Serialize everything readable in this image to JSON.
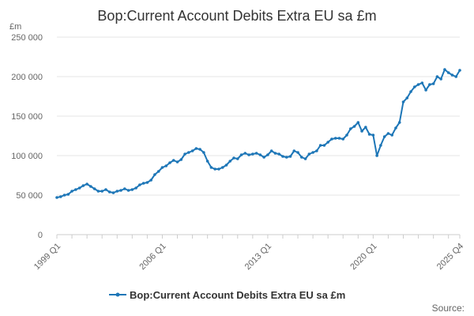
{
  "colors": {
    "series": "#1d76b7",
    "grid": "#e6e6e6",
    "axis": "#cccccc"
  },
  "unit_label": "£m",
  "source_label": "Source:",
  "chart_data": {
    "type": "line",
    "title": "Bop:Current Account Debits Extra EU sa £m",
    "xlabel": "",
    "ylabel": "",
    "ylim": [
      0,
      250000
    ],
    "y_ticks": [
      0,
      50000,
      100000,
      150000,
      200000,
      250000
    ],
    "y_tick_labels": [
      "0",
      "50 000",
      "100 000",
      "150 000",
      "200 000",
      "250 000"
    ],
    "x_tick_labels": [
      "1999 Q1",
      "2006 Q1",
      "2013 Q1",
      "2020 Q1",
      "2025 Q4"
    ],
    "grid": true,
    "legend": "bottom",
    "x": [
      "1999 Q1",
      "1999 Q2",
      "1999 Q3",
      "1999 Q4",
      "2000 Q1",
      "2000 Q2",
      "2000 Q3",
      "2000 Q4",
      "2001 Q1",
      "2001 Q2",
      "2001 Q3",
      "2001 Q4",
      "2002 Q1",
      "2002 Q2",
      "2002 Q3",
      "2002 Q4",
      "2003 Q1",
      "2003 Q2",
      "2003 Q3",
      "2003 Q4",
      "2004 Q1",
      "2004 Q2",
      "2004 Q3",
      "2004 Q4",
      "2005 Q1",
      "2005 Q2",
      "2005 Q3",
      "2005 Q4",
      "2006 Q1",
      "2006 Q2",
      "2006 Q3",
      "2006 Q4",
      "2007 Q1",
      "2007 Q2",
      "2007 Q3",
      "2007 Q4",
      "2008 Q1",
      "2008 Q2",
      "2008 Q3",
      "2008 Q4",
      "2009 Q1",
      "2009 Q2",
      "2009 Q3",
      "2009 Q4",
      "2010 Q1",
      "2010 Q2",
      "2010 Q3",
      "2010 Q4",
      "2011 Q1",
      "2011 Q2",
      "2011 Q3",
      "2011 Q4",
      "2012 Q1",
      "2012 Q2",
      "2012 Q3",
      "2012 Q4",
      "2013 Q1",
      "2013 Q2",
      "2013 Q3",
      "2013 Q4",
      "2014 Q1",
      "2014 Q2",
      "2014 Q3",
      "2014 Q4",
      "2015 Q1",
      "2015 Q2",
      "2015 Q3",
      "2015 Q4",
      "2016 Q1",
      "2016 Q2",
      "2016 Q3",
      "2016 Q4",
      "2017 Q1",
      "2017 Q2",
      "2017 Q3",
      "2017 Q4",
      "2018 Q1",
      "2018 Q2",
      "2018 Q3",
      "2018 Q4",
      "2019 Q1",
      "2019 Q2",
      "2019 Q3",
      "2019 Q4",
      "2020 Q1",
      "2020 Q2",
      "2020 Q3",
      "2020 Q4",
      "2021 Q1",
      "2021 Q2",
      "2021 Q3",
      "2021 Q4",
      "2022 Q1",
      "2022 Q2",
      "2022 Q3",
      "2022 Q4",
      "2023 Q1",
      "2023 Q2",
      "2023 Q3",
      "2023 Q4",
      "2024 Q1",
      "2024 Q2",
      "2024 Q3",
      "2024 Q4",
      "2025 Q1",
      "2025 Q2",
      "2025 Q3",
      "2025 Q4"
    ],
    "series": [
      {
        "name": "Bop:Current Account Debits Extra EU sa £m",
        "values": [
          47000,
          48000,
          50000,
          51000,
          55000,
          57000,
          59000,
          62000,
          64000,
          61000,
          58000,
          55000,
          55000,
          57000,
          54000,
          53000,
          55000,
          56000,
          58000,
          56000,
          57000,
          59000,
          63000,
          65000,
          66000,
          69000,
          76000,
          80000,
          85000,
          87000,
          91000,
          94000,
          92000,
          95000,
          102000,
          104000,
          106000,
          109000,
          108000,
          104000,
          93000,
          85000,
          83000,
          83000,
          85000,
          88000,
          93000,
          97000,
          96000,
          101000,
          103000,
          101000,
          102000,
          103000,
          101000,
          98000,
          101000,
          106000,
          103000,
          102000,
          99000,
          98000,
          99000,
          106000,
          104000,
          98000,
          96000,
          102000,
          104000,
          106000,
          113000,
          113000,
          117000,
          121000,
          122000,
          122000,
          121000,
          126000,
          134000,
          137000,
          142000,
          131000,
          136000,
          127000,
          126000,
          100000,
          113000,
          124000,
          128000,
          126000,
          135000,
          142000,
          168000,
          173000,
          181000,
          187000,
          190000,
          192000,
          183000,
          190000,
          191000,
          200000,
          197000,
          209000,
          205000,
          202000,
          200000,
          208000
        ]
      }
    ]
  }
}
